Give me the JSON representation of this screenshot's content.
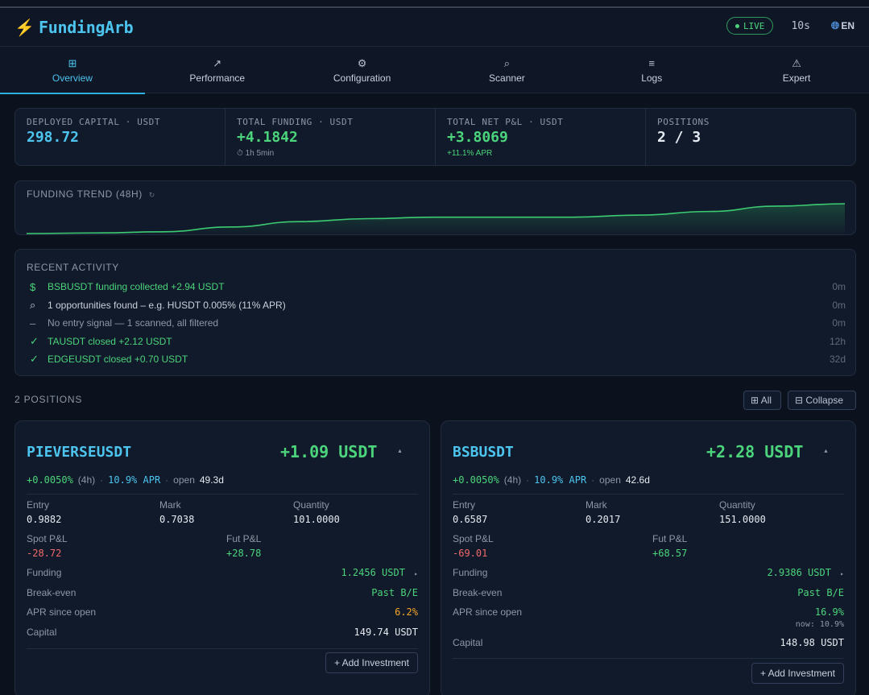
{
  "app": {
    "name": "FundingArb",
    "live_label": "LIVE",
    "interval": "10s",
    "lang": "EN"
  },
  "tabs": [
    {
      "label": "Overview",
      "icon": "grid-icon"
    },
    {
      "label": "Performance",
      "icon": "trend-arrow-icon"
    },
    {
      "label": "Configuration",
      "icon": "gear-icon"
    },
    {
      "label": "Scanner",
      "icon": "search-icon"
    },
    {
      "label": "Logs",
      "icon": "list-icon"
    },
    {
      "label": "Expert",
      "icon": "warning-icon"
    }
  ],
  "stats": {
    "deployed": {
      "label": "DEPLOYED CAPITAL · USDT",
      "value": "298.72"
    },
    "funding": {
      "label": "TOTAL FUNDING · USDT",
      "value": "+4.1842",
      "sub": "⏱ 1h 5min"
    },
    "net": {
      "label": "TOTAL NET P&L · USDT",
      "value": "+3.8069",
      "sub": "+11.1% APR"
    },
    "positions": {
      "label": "POSITIONS",
      "value": "2 / 3"
    }
  },
  "trend": {
    "title": "FUNDING TREND (48H)",
    "refresh": "↻"
  },
  "chart_data": {
    "type": "area",
    "title": "FUNDING TREND (48H)",
    "x": [
      0,
      4,
      8,
      12,
      16,
      20,
      24,
      28,
      32,
      36,
      40,
      44,
      48
    ],
    "values": [
      0.0,
      0.02,
      0.06,
      0.22,
      0.4,
      0.5,
      0.55,
      0.55,
      0.55,
      0.62,
      0.74,
      0.92,
      1.0
    ],
    "grid": false,
    "color": "#3ccb72"
  },
  "activity": {
    "title": "RECENT ACTIVITY",
    "items": [
      {
        "icon": "$",
        "text": "BSBUSDT funding collected +2.94 USDT",
        "time": "0m",
        "color": "#4bd47b"
      },
      {
        "icon": "⌕",
        "text": "1 opportunities found – e.g. HUSDT 0.005% (11% APR)",
        "time": "0m",
        "color": "#c9d1dc"
      },
      {
        "icon": "–",
        "text": "No entry signal — 1 scanned, all filtered",
        "time": "0m",
        "color": "#8d97a6"
      },
      {
        "icon": "✓",
        "text": "TAUSDT closed +2.12 USDT",
        "time": "12h",
        "color": "#4bd47b"
      },
      {
        "icon": "✓",
        "text": "EDGEUSDT closed +0.70 USDT",
        "time": "32d",
        "color": "#4bd47b"
      }
    ]
  },
  "positions": {
    "header": "2 POSITIONS",
    "all_btn": "⊞ All",
    "collapse_btn": "⊟ Collapse",
    "cards": [
      {
        "symbol": "PIEVERSEUSDT",
        "pnl": "+1.09 USDT",
        "rate": "+0.0050%",
        "period": "(4h)",
        "apr": "10.9% APR",
        "open_label": "open",
        "open_age": "49.3d",
        "entry_label": "Entry",
        "entry": "0.9882",
        "mark_label": "Mark",
        "mark": "0.7038",
        "qty_label": "Quantity",
        "qty": "101.0000",
        "spot_label": "Spot P&L",
        "spot": "-28.72",
        "fut_label": "Fut P&L",
        "fut": "+28.78",
        "funding_label": "Funding",
        "funding": "1.2456 USDT",
        "be_label": "Break-even",
        "be": "Past B/E",
        "apr_open_label": "APR since open",
        "apr_open": "6.2%",
        "capital_label": "Capital",
        "capital": "149.74 USDT",
        "add_btn": "+ Add Investment"
      },
      {
        "symbol": "BSBUSDT",
        "pnl": "+2.28 USDT",
        "rate": "+0.0050%",
        "period": "(4h)",
        "apr": "10.9% APR",
        "open_label": "open",
        "open_age": "42.6d",
        "entry_label": "Entry",
        "entry": "0.6587",
        "mark_label": "Mark",
        "mark": "0.2017",
        "qty_label": "Quantity",
        "qty": "151.0000",
        "spot_label": "Spot P&L",
        "spot": "-69.01",
        "fut_label": "Fut P&L",
        "fut": "+68.57",
        "funding_label": "Funding",
        "funding": "2.9386 USDT",
        "be_label": "Break-even",
        "be": "Past B/E",
        "apr_open_label": "APR since open",
        "apr_open": "16.9%",
        "apr_now": "now: 10.9%",
        "capital_label": "Capital",
        "capital": "148.98 USDT",
        "add_btn": "+ Add Investment"
      }
    ]
  }
}
